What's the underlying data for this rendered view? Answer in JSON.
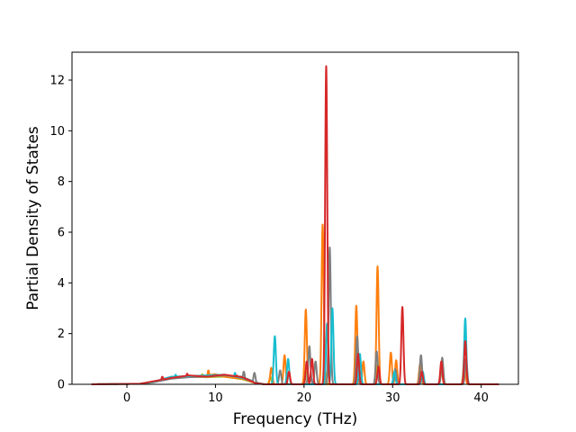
{
  "chart_data": {
    "type": "line",
    "title": "",
    "xlabel": "Frequency (THz)",
    "ylabel": "Partial Density of States",
    "xlim": [
      -6.2,
      44.2
    ],
    "ylim": [
      0,
      13.1
    ],
    "xticks": [
      0,
      10,
      20,
      30,
      40
    ],
    "yticks": [
      0,
      2,
      4,
      6,
      8,
      10,
      12
    ],
    "grid": false,
    "legend": "none",
    "series": [
      {
        "color": "#bcbd22",
        "baseline": [
          [
            -4,
            0
          ],
          [
            1.5,
            0.02
          ],
          [
            3,
            0.08
          ],
          [
            5,
            0.25
          ],
          [
            7,
            0.3
          ],
          [
            9,
            0.28
          ],
          [
            11,
            0.3
          ],
          [
            13,
            0.2
          ],
          [
            14.5,
            0.05
          ],
          [
            15.5,
            0
          ]
        ],
        "peaks": [
          [
            8.5,
            0.4
          ],
          [
            16.2,
            0.3
          ],
          [
            20.3,
            0.6
          ],
          [
            22.4,
            0.5
          ],
          [
            26.1,
            0.4
          ],
          [
            28.3,
            0.8
          ],
          [
            33.2,
            0.3
          ],
          [
            38.2,
            0.9
          ]
        ]
      },
      {
        "color": "#ff7f0e",
        "baseline": [
          [
            -4,
            0
          ],
          [
            1.5,
            0.02
          ],
          [
            3,
            0.1
          ],
          [
            5,
            0.25
          ],
          [
            7,
            0.32
          ],
          [
            9,
            0.35
          ],
          [
            10,
            0.4
          ],
          [
            11,
            0.3
          ],
          [
            13,
            0.22
          ],
          [
            14.5,
            0.05
          ],
          [
            15.5,
            0
          ]
        ],
        "peaks": [
          [
            9.2,
            0.55
          ],
          [
            16.3,
            0.65
          ],
          [
            17.8,
            1.15
          ],
          [
            20.2,
            2.95
          ],
          [
            22.1,
            6.3
          ],
          [
            25.9,
            3.1
          ],
          [
            26.7,
            0.9
          ],
          [
            28.3,
            4.65
          ],
          [
            29.8,
            1.25
          ],
          [
            30.4,
            0.95
          ],
          [
            33.1,
            0.8
          ],
          [
            35.5,
            0.6
          ],
          [
            38.1,
            1.0
          ]
        ]
      },
      {
        "color": "#7f7f7f",
        "baseline": [
          [
            -4,
            0
          ],
          [
            1.5,
            0.02
          ],
          [
            3,
            0.08
          ],
          [
            5,
            0.22
          ],
          [
            7,
            0.28
          ],
          [
            9,
            0.3
          ],
          [
            11,
            0.35
          ],
          [
            13,
            0.3
          ],
          [
            14.5,
            0.08
          ],
          [
            15.5,
            0
          ]
        ],
        "peaks": [
          [
            13.2,
            0.5
          ],
          [
            14.4,
            0.45
          ],
          [
            17.3,
            0.55
          ],
          [
            20.6,
            1.5
          ],
          [
            21.3,
            0.9
          ],
          [
            22.9,
            5.4
          ],
          [
            26.0,
            1.9
          ],
          [
            28.2,
            1.3
          ],
          [
            30.3,
            0.6
          ],
          [
            33.2,
            1.15
          ],
          [
            35.6,
            1.05
          ],
          [
            38.3,
            1.0
          ]
        ]
      },
      {
        "color": "#17becf",
        "baseline": [
          [
            -4,
            0
          ],
          [
            1.5,
            0.02
          ],
          [
            3,
            0.1
          ],
          [
            5,
            0.3
          ],
          [
            7,
            0.32
          ],
          [
            9,
            0.35
          ],
          [
            11,
            0.38
          ],
          [
            13,
            0.25
          ],
          [
            14.5,
            0.06
          ],
          [
            15.5,
            0
          ]
        ],
        "peaks": [
          [
            5.5,
            0.38
          ],
          [
            12.2,
            0.45
          ],
          [
            16.7,
            1.9
          ],
          [
            18.2,
            1.0
          ],
          [
            22.6,
            2.4
          ],
          [
            23.2,
            3.0
          ],
          [
            26.3,
            1.2
          ],
          [
            30.2,
            0.5
          ],
          [
            33.4,
            0.5
          ],
          [
            38.2,
            2.6
          ]
        ]
      },
      {
        "color": "#d62728",
        "baseline": [
          [
            -4,
            0
          ],
          [
            1.5,
            0.02
          ],
          [
            3,
            0.12
          ],
          [
            5,
            0.25
          ],
          [
            7,
            0.35
          ],
          [
            9,
            0.3
          ],
          [
            11,
            0.38
          ],
          [
            13,
            0.28
          ],
          [
            14.5,
            0.05
          ],
          [
            15.5,
            0
          ]
        ],
        "peaks": [
          [
            4,
            0.3
          ],
          [
            6.8,
            0.42
          ],
          [
            12.4,
            0.35
          ],
          [
            18.3,
            0.5
          ],
          [
            20.3,
            0.9
          ],
          [
            20.9,
            1.0
          ],
          [
            22.5,
            12.55
          ],
          [
            26.1,
            1.2
          ],
          [
            28.4,
            0.7
          ],
          [
            31.1,
            3.05
          ],
          [
            33.3,
            0.5
          ],
          [
            35.5,
            0.9
          ],
          [
            38.2,
            1.7
          ]
        ]
      }
    ]
  }
}
